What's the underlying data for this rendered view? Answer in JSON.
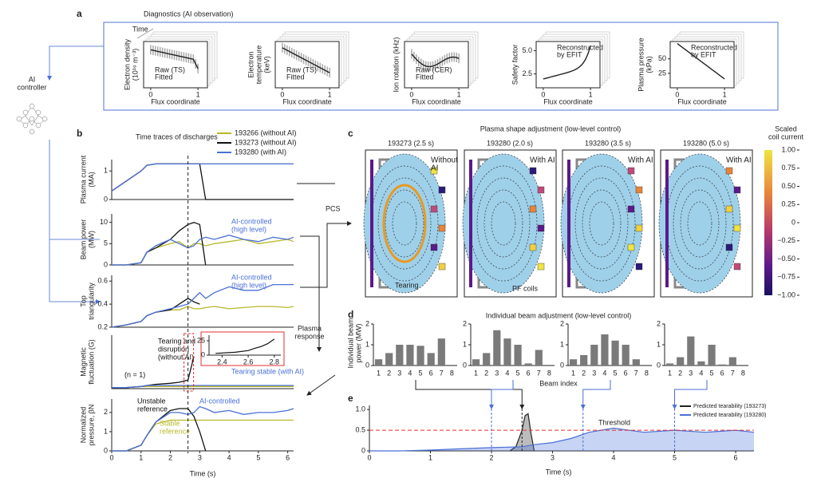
{
  "a": {
    "label": "a",
    "title": "Diagnostics (AI observation)",
    "time": "Time",
    "plots": [
      {
        "ylabel": [
          "Electron density",
          "(10¹⁹ m⁻³)"
        ],
        "legend": [
          "Raw (TS)",
          "Fitted"
        ],
        "xlabel": "Flux coordinate",
        "xticks": [
          0,
          1
        ],
        "xlim": [
          -0.15,
          1.2
        ],
        "yticks": [],
        "ylim": [
          0,
          1
        ]
      },
      {
        "ylabel": [
          "Electron",
          "temperature",
          "(keV)"
        ],
        "legend": [
          "Raw (TS)",
          "Fitted"
        ],
        "xlabel": "Flux coordinate",
        "xticks": [
          0,
          1
        ],
        "xlim": [
          -0.15,
          1.2
        ],
        "yticks": [],
        "ylim": [
          0,
          1
        ]
      },
      {
        "ylabel": [
          "Ion rotation (kHz)"
        ],
        "legend": [
          "Raw (CER)",
          "Fitted"
        ],
        "xlabel": "Flux coordinate",
        "xticks": [
          0,
          1
        ],
        "xlim": [
          -0.15,
          1.2
        ],
        "yticks": [],
        "ylim": [
          0,
          1
        ]
      },
      {
        "ylabel": [
          "Safety factor"
        ],
        "legend": [
          "Reconstructed",
          "by EFIT"
        ],
        "xlabel": "Flux coordinate",
        "xticks": [
          0,
          1
        ],
        "xlim": [
          -0.15,
          1.2
        ],
        "yticks": [
          {
            "value": 5,
            "label": "5.0"
          },
          {
            "value": 2.5,
            "label": "2.5"
          }
        ],
        "ylim": [
          1,
          6
        ]
      },
      {
        "ylabel": [
          "Plasma pressure",
          "(kPa)"
        ],
        "legend": [
          "Reconstructed",
          "by EFIT"
        ],
        "xlabel": "Flux coordinate",
        "xticks": [
          0,
          1
        ],
        "xlim": [
          -0.15,
          1.2
        ],
        "yticks": [
          50,
          25
        ],
        "ylim": [
          0,
          80
        ]
      }
    ]
  },
  "controller": [
    "AI",
    "controller"
  ],
  "b": {
    "label": "b",
    "title": "Time traces of discharges",
    "legend": [
      {
        "name": "193266 (without AI)",
        "color": "#b8b82c"
      },
      {
        "name": "193273 (without AI)",
        "color": "#111111"
      },
      {
        "name": "193280 (with AI)",
        "color": "#4a6fd8"
      }
    ],
    "time": [
      0,
      0.5,
      1.0,
      1.2,
      1.5,
      2.0,
      2.3,
      2.6,
      2.8,
      3.0,
      3.2,
      3.5,
      4.0,
      4.5,
      5.0,
      5.5,
      6.0,
      6.2
    ],
    "xlim": [
      0,
      6.2
    ],
    "xticks": [
      0,
      1,
      2,
      3,
      4,
      5,
      6
    ],
    "xlabel": "Time (s)",
    "marker_time": 2.6,
    "panels": [
      {
        "ylabel": [
          "Plasma current",
          "(MA)"
        ],
        "ylim": [
          0,
          1.4
        ],
        "yticks": [
          0,
          1
        ],
        "series": [
          [
            0.3,
            0.65,
            1.0,
            1.2,
            1.25,
            1.25,
            1.25,
            1.25,
            1.25,
            1.25,
            1.25,
            1.25,
            1.25,
            1.25,
            1.25,
            1.25,
            1.25,
            1.25
          ],
          [
            0.3,
            0.65,
            1.0,
            1.2,
            1.25,
            1.25,
            1.25,
            1.25,
            1.25,
            1.25,
            0,
            0,
            0,
            0,
            0,
            0,
            0,
            0
          ],
          [
            0.3,
            0.65,
            1.0,
            1.2,
            1.25,
            1.25,
            1.25,
            1.25,
            1.25,
            1.25,
            1.25,
            1.25,
            1.25,
            1.25,
            1.25,
            1.25,
            1.25,
            1.25
          ]
        ],
        "notes": []
      },
      {
        "ylabel": [
          "Beam power",
          "(MW)"
        ],
        "ylim": [
          0,
          12
        ],
        "yticks": [
          0,
          5,
          10
        ],
        "series": [
          [
            0,
            0,
            0.5,
            3,
            4,
            5,
            5.5,
            4,
            5,
            5,
            4.5,
            5,
            5.5,
            6,
            5,
            5.5,
            6,
            5.5
          ],
          [
            0,
            0,
            0.5,
            3,
            4,
            6,
            8,
            9.5,
            10,
            9.5,
            0,
            null,
            null,
            null,
            null,
            null,
            null,
            null
          ],
          [
            0,
            0,
            0.5,
            3,
            4.5,
            6,
            5,
            4,
            4.5,
            6,
            6.5,
            6,
            7,
            6,
            5.5,
            6.5,
            6,
            6.5
          ]
        ],
        "notes": [
          {
            "lines": [
              "AI-controlled",
              "(high level)"
            ],
            "color": "#4a6fd8"
          }
        ]
      },
      {
        "ylabel": [
          "Top",
          "triangularity"
        ],
        "ylim": [
          0.2,
          0.65
        ],
        "yticks": [
          0.2,
          0.4,
          0.6
        ],
        "series": [
          [
            0.2,
            0.22,
            0.25,
            0.3,
            0.33,
            0.35,
            0.35,
            0.38,
            0.36,
            0.36,
            0.37,
            0.38,
            0.36,
            0.37,
            0.38,
            0.38,
            0.37,
            0.38
          ],
          [
            0.2,
            0.22,
            0.25,
            0.3,
            0.33,
            0.35,
            0.4,
            0.45,
            0.42,
            0.4,
            null,
            null,
            null,
            null,
            null,
            null,
            null,
            null
          ],
          [
            0.2,
            0.22,
            0.25,
            0.3,
            0.33,
            0.36,
            0.38,
            0.4,
            0.45,
            0.5,
            0.45,
            0.5,
            0.55,
            0.52,
            0.52,
            0.57,
            0.57,
            0.57
          ]
        ],
        "notes": [
          {
            "lines": [
              "AI-controlled",
              "(high level)"
            ],
            "color": "#4a6fd8"
          }
        ]
      },
      {
        "ylabel": [
          "Magnetic",
          "fluctuation (G)"
        ],
        "ylim": [
          0,
          50
        ],
        "yticks": [],
        "series": [
          [
            1,
            1,
            2,
            2,
            2,
            2,
            2,
            2,
            2,
            2,
            2,
            2,
            2,
            2,
            2,
            2,
            2,
            2
          ],
          [
            1,
            1,
            2,
            3,
            4,
            5,
            6,
            8,
            30,
            null,
            null,
            null,
            null,
            null,
            null,
            null,
            null,
            null
          ],
          [
            1,
            1,
            2,
            3,
            3,
            3,
            3,
            3,
            3,
            3,
            3,
            3,
            3,
            3,
            3,
            3,
            3,
            3
          ]
        ],
        "notes": [
          {
            "lines": [
              "Tearing and",
              "disruption",
              "(without AI)"
            ],
            "color": "#111111"
          },
          {
            "lines": [
              "(n = 1)"
            ],
            "color": "#111111"
          },
          {
            "lines": [
              "Tearing stable (with AI)"
            ],
            "color": "#4a6fd8"
          }
        ],
        "inset": {
          "xlim": [
            2.3,
            2.85
          ],
          "ylim": [
            0,
            32
          ],
          "xticks": [
            2.4,
            2.6,
            2.8
          ],
          "yticks": [
            0,
            25
          ],
          "x": [
            2.35,
            2.5,
            2.6,
            2.65,
            2.7,
            2.75,
            2.8
          ],
          "values": [
            3,
            5,
            8,
            12,
            15,
            20,
            28
          ]
        }
      },
      {
        "ylabel": [
          "Normalized",
          "pressure, βN"
        ],
        "ylim": [
          0,
          2.7
        ],
        "yticks": [
          0,
          1,
          2
        ],
        "series": [
          [
            0,
            0,
            0.3,
            0.8,
            1.4,
            1.6,
            1.6,
            1.6,
            1.6,
            1.6,
            1.6,
            1.6,
            1.6,
            1.6,
            1.6,
            1.6,
            1.6,
            1.6
          ],
          [
            0,
            0,
            0.3,
            0.8,
            1.5,
            2.1,
            2.2,
            2.2,
            1.8,
            1.0,
            0,
            null,
            null,
            null,
            null,
            null,
            null,
            null
          ],
          [
            0,
            0,
            0.3,
            0.8,
            1.5,
            2.0,
            2.0,
            1.9,
            2.0,
            2.3,
            2.2,
            2.0,
            2.1,
            1.9,
            2.0,
            2.0,
            2.1,
            2.2
          ]
        ],
        "notes": [
          {
            "lines": [
              "Unstable",
              "reference"
            ],
            "color": "#111111"
          },
          {
            "lines": [
              "AI-controlled"
            ],
            "color": "#4a6fd8"
          },
          {
            "lines": [
              "Stable",
              "reference"
            ],
            "color": "#b8b82c"
          }
        ]
      }
    ]
  },
  "pcs": "PCS",
  "plasma_response": [
    "Plasma",
    "response"
  ],
  "c": {
    "label": "c",
    "title": "Plasma shape adjustment (low-level control)",
    "snapshots": [
      {
        "title": "193273 (2.5 s)",
        "tag": [
          "Without",
          "AI"
        ]
      },
      {
        "title": "193280 (2.0 s)",
        "tag": [
          "With AI"
        ]
      },
      {
        "title": "193280 (3.5 s)",
        "tag": [
          "With AI"
        ]
      },
      {
        "title": "193280 (5.0 s)",
        "tag": [
          "With AI"
        ]
      }
    ],
    "tearing": "Tearing",
    "pf_coils": "PF coils",
    "colorbar": {
      "title": [
        "Scaled",
        "coil current"
      ],
      "ylim": [
        -1,
        1
      ],
      "ticks": [
        {
          "value": 1,
          "label": "1.00"
        },
        {
          "value": 0.75,
          "label": "0.75"
        },
        {
          "value": 0.5,
          "label": "0.50"
        },
        {
          "value": 0.25,
          "label": "0.25"
        },
        0,
        {
          "value": -0.25,
          "label": "−0.25"
        },
        {
          "value": -0.5,
          "label": "−0.50"
        },
        {
          "value": -0.75,
          "label": "−0.75"
        },
        {
          "value": -1,
          "label": "−1.00"
        }
      ]
    }
  },
  "d": {
    "label": "d",
    "title": "Individual beam adjustment (low-level control)",
    "ylabel": [
      "Individual beam",
      "power (MW)"
    ],
    "xlabel": "Beam index",
    "categories": [
      "1",
      "2",
      "3",
      "4",
      "5",
      "6",
      "7",
      "8"
    ],
    "ylim": [
      0,
      2
    ],
    "yticks": [
      0,
      1,
      2
    ],
    "color": "#7a7a7a",
    "charts": [
      [
        0.3,
        0.6,
        1.0,
        1.0,
        0.95,
        0.6,
        1.3,
        0
      ],
      [
        0.3,
        0.6,
        1.7,
        1.3,
        1.0,
        0.1,
        0.75,
        0
      ],
      [
        0.3,
        0.5,
        1.0,
        1.5,
        1.2,
        1.0,
        0.3,
        0
      ],
      [
        0.1,
        0.4,
        1.4,
        0.2,
        1.0,
        0.05,
        0.4,
        0
      ]
    ]
  },
  "e": {
    "label": "e",
    "xlim": [
      0,
      6.3
    ],
    "ylim": [
      0,
      1.1
    ],
    "xticks": [
      0,
      1,
      2,
      3,
      4,
      5,
      6
    ],
    "yticks": [
      0,
      {
        "value": 0.5,
        "label": "0.5"
      },
      {
        "value": 1,
        "label": "1.0"
      }
    ],
    "xlabel": "Time (s)",
    "threshold": 0.5,
    "threshold_label": "Threshold",
    "snapshot_times": [
      2.5,
      2.0,
      3.5,
      5.0
    ],
    "series": [
      {
        "name": "Predicted tearability (193273)",
        "color": "#222222",
        "x": [
          2.3,
          2.4,
          2.5,
          2.55,
          2.6,
          2.65,
          2.7
        ],
        "values": [
          0,
          0.1,
          0.5,
          0.85,
          0.9,
          0.4,
          0
        ]
      },
      {
        "name": "Predicted tearability (193280)",
        "color": "#4a6fd8",
        "x": [
          0,
          0.5,
          1,
          1.5,
          2,
          2.5,
          2.7,
          3,
          3.3,
          3.6,
          4,
          4.5,
          5,
          5.5,
          6,
          6.3
        ],
        "values": [
          0,
          0,
          0.02,
          0.05,
          0.08,
          0.1,
          0.15,
          0.2,
          0.3,
          0.45,
          0.55,
          0.45,
          0.5,
          0.45,
          0.5,
          0.45
        ]
      }
    ]
  }
}
